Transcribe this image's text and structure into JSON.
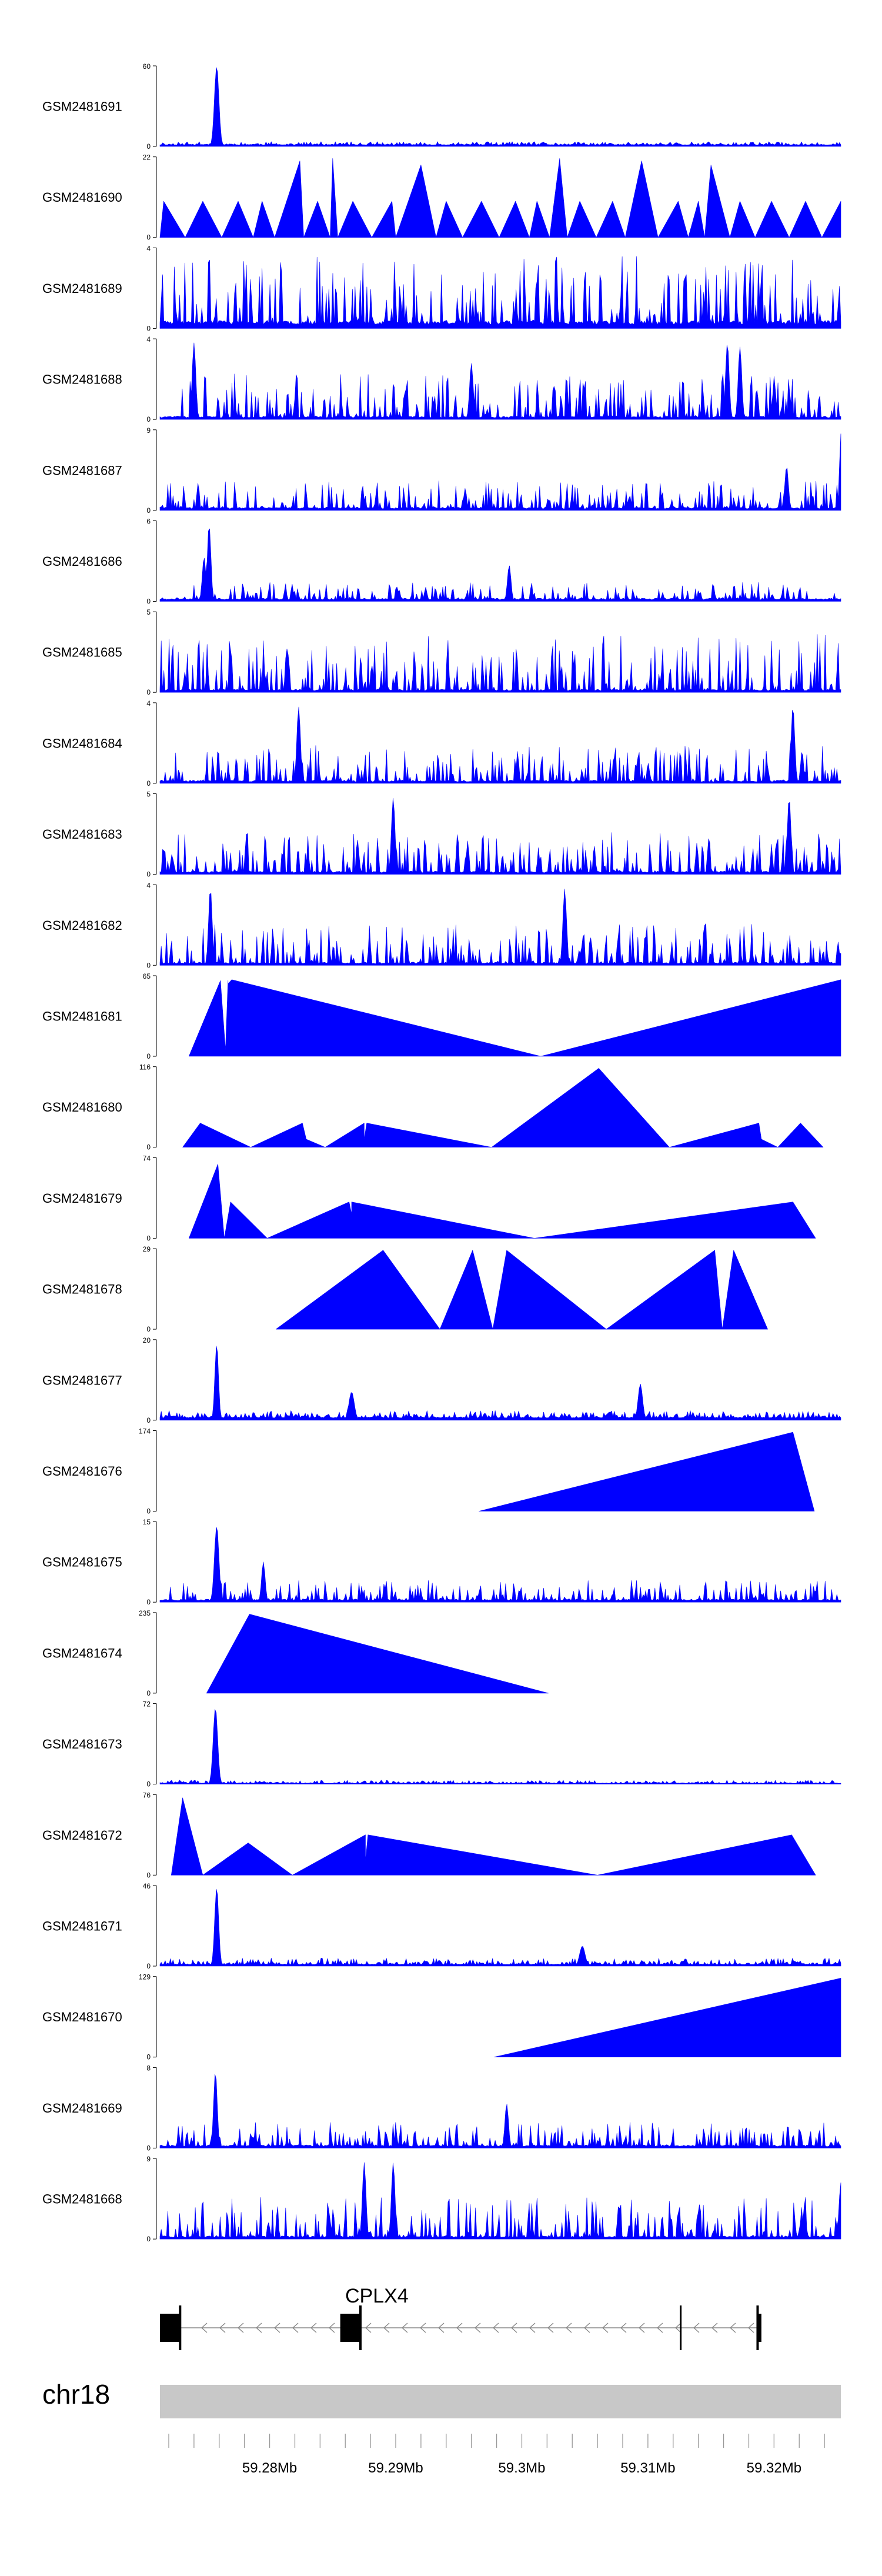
{
  "colors": {
    "signal": "#0000ff",
    "ideogram": "#c8c8c8",
    "gene": "#000000",
    "intron": "#888888"
  },
  "chart_data": {
    "type": "area",
    "title": "",
    "xlabel": "",
    "ylabel": "",
    "region": {
      "chromosome": "chr18",
      "start_mb": 59.2713,
      "end_mb": 59.3253
    },
    "x_ticks": [
      "59.28Mb",
      "59.29Mb",
      "59.3Mb",
      "59.31Mb",
      "59.32Mb"
    ],
    "x_tick_values": [
      59.28,
      59.29,
      59.3,
      59.31,
      59.32
    ],
    "gene": {
      "name": "CPLX4",
      "strand": "-",
      "exons": [
        [
          59.2713,
          59.2729
        ],
        [
          59.2856,
          59.2872
        ],
        [
          59.3187,
          59.319
        ]
      ],
      "extra_mark": 59.3126
    },
    "tracks": [
      {
        "name": "GSM2481691",
        "ymax": "60",
        "style": "noisy",
        "baseline": 0.02,
        "noise": 0.04,
        "peaks": [
          [
            59.2758,
            1.0,
            0.00025
          ]
        ],
        "seed": 11
      },
      {
        "name": "GSM2481690",
        "ymax": "22",
        "style": "tri",
        "points": [
          [
            59.2713,
            0
          ],
          [
            59.2716,
            0.45
          ],
          [
            59.2733,
            0.0
          ],
          [
            59.2747,
            0.45
          ],
          [
            59.2762,
            0.0
          ],
          [
            59.2775,
            0.45
          ],
          [
            59.2787,
            0.0
          ],
          [
            59.2794,
            0.45
          ],
          [
            59.2804,
            0.0
          ],
          [
            59.2824,
            0.95
          ],
          [
            59.2827,
            0.0
          ],
          [
            59.2838,
            0.45
          ],
          [
            59.2848,
            0.0
          ],
          [
            59.285,
            0.98
          ],
          [
            59.2854,
            0.0
          ],
          [
            59.2866,
            0.45
          ],
          [
            59.2881,
            0.0
          ],
          [
            59.2897,
            0.45
          ],
          [
            59.29,
            0.0
          ],
          [
            59.292,
            0.9
          ],
          [
            59.2932,
            0.0
          ],
          [
            59.294,
            0.45
          ],
          [
            59.2953,
            0.0
          ],
          [
            59.2968,
            0.45
          ],
          [
            59.2982,
            0.0
          ],
          [
            59.2995,
            0.45
          ],
          [
            59.3006,
            0.0
          ],
          [
            59.3012,
            0.45
          ],
          [
            59.3022,
            0.0
          ],
          [
            59.303,
            0.98
          ],
          [
            59.3036,
            0.0
          ],
          [
            59.3046,
            0.45
          ],
          [
            59.3059,
            0.0
          ],
          [
            59.3072,
            0.45
          ],
          [
            59.3082,
            0.0
          ],
          [
            59.3095,
            0.95
          ],
          [
            59.3108,
            0.0
          ],
          [
            59.3124,
            0.45
          ],
          [
            59.3132,
            0.0
          ],
          [
            59.314,
            0.45
          ],
          [
            59.3145,
            0.0
          ],
          [
            59.315,
            0.9
          ],
          [
            59.3165,
            0.0
          ],
          [
            59.3173,
            0.45
          ],
          [
            59.3185,
            0.0
          ],
          [
            59.3198,
            0.45
          ],
          [
            59.3212,
            0.0
          ],
          [
            59.3225,
            0.45
          ],
          [
            59.3238,
            0.0
          ],
          [
            59.3253,
            0.45
          ],
          [
            59.3253,
            0
          ]
        ]
      },
      {
        "name": "GSM2481689",
        "ymax": "4",
        "style": "noisy",
        "baseline": 0.05,
        "noise": 0.85,
        "peaks": [],
        "seed": 23,
        "spiky": true
      },
      {
        "name": "GSM2481688",
        "ymax": "4",
        "style": "noisy",
        "baseline": 0.02,
        "noise": 0.55,
        "peaks": [
          [
            59.274,
            0.95,
            0.0002
          ],
          [
            59.296,
            0.7,
            0.0002
          ],
          [
            59.3163,
            0.95,
            0.0002
          ],
          [
            59.3173,
            0.9,
            0.0002
          ]
        ],
        "seed": 37,
        "spiky": true
      },
      {
        "name": "GSM2481687",
        "ymax": "9",
        "style": "noisy",
        "baseline": 0.02,
        "noise": 0.35,
        "peaks": [
          [
            59.3253,
            0.95,
            0.00015
          ],
          [
            59.321,
            0.55,
            0.0002
          ]
        ],
        "seed": 41,
        "spiky": true
      },
      {
        "name": "GSM2481686",
        "ymax": "6",
        "style": "noisy",
        "baseline": 0.02,
        "noise": 0.22,
        "peaks": [
          [
            59.2752,
            0.95,
            0.0002
          ],
          [
            59.2748,
            0.55,
            0.0002
          ],
          [
            59.299,
            0.45,
            0.0002
          ]
        ],
        "seed": 53,
        "spiky": true
      },
      {
        "name": "GSM2481685",
        "ymax": "5",
        "style": "noisy",
        "baseline": 0.02,
        "noise": 0.7,
        "peaks": [],
        "seed": 61,
        "spiky": true
      },
      {
        "name": "GSM2481684",
        "ymax": "4",
        "style": "noisy",
        "baseline": 0.02,
        "noise": 0.45,
        "peaks": [
          [
            59.2823,
            0.95,
            0.0002
          ],
          [
            59.3215,
            0.95,
            0.0002
          ]
        ],
        "seed": 67,
        "spiky": true
      },
      {
        "name": "GSM2481683",
        "ymax": "5",
        "style": "noisy",
        "baseline": 0.02,
        "noise": 0.5,
        "peaks": [
          [
            59.2898,
            0.95,
            0.0002
          ],
          [
            59.3212,
            0.95,
            0.0002
          ]
        ],
        "seed": 71,
        "spiky": true
      },
      {
        "name": "GSM2481682",
        "ymax": "4",
        "style": "noisy",
        "baseline": 0.02,
        "noise": 0.5,
        "peaks": [
          [
            59.2753,
            0.95,
            0.0002
          ],
          [
            59.3034,
            0.95,
            0.0002
          ]
        ],
        "seed": 79,
        "spiky": true
      },
      {
        "name": "GSM2481681",
        "ymax": "65",
        "style": "tri",
        "points": [
          [
            59.2736,
            0
          ],
          [
            59.2761,
            0.94
          ],
          [
            59.2765,
            0.08
          ],
          [
            59.2767,
            0.94
          ],
          [
            59.2767,
            0.9
          ],
          [
            59.277,
            0.95
          ],
          [
            59.3015,
            0.0
          ],
          [
            59.3253,
            0.95
          ],
          [
            59.3253,
            0
          ]
        ]
      },
      {
        "name": "GSM2481680",
        "ymax": "116",
        "style": "tri",
        "points": [
          [
            59.2731,
            0
          ],
          [
            59.2745,
            0.3
          ],
          [
            59.2785,
            0.0
          ],
          [
            59.2826,
            0.3
          ],
          [
            59.2829,
            0.1
          ],
          [
            59.2844,
            0.0
          ],
          [
            59.2875,
            0.3
          ],
          [
            59.2875,
            0.1
          ],
          [
            59.2877,
            0.3
          ],
          [
            59.2976,
            0.0
          ],
          [
            59.3061,
            0.98
          ],
          [
            59.3117,
            0.0
          ],
          [
            59.3188,
            0.3
          ],
          [
            59.319,
            0.1
          ],
          [
            59.3203,
            0.0
          ],
          [
            59.3221,
            0.3
          ],
          [
            59.3239,
            0.0
          ]
        ]
      },
      {
        "name": "GSM2481679",
        "ymax": "74",
        "style": "tri",
        "points": [
          [
            59.2736,
            0
          ],
          [
            59.2759,
            0.92
          ],
          [
            59.2764,
            0.0
          ],
          [
            59.2769,
            0.45
          ],
          [
            59.2798,
            0.0
          ],
          [
            59.2863,
            0.45
          ],
          [
            59.2865,
            0.3
          ],
          [
            59.2865,
            0.45
          ],
          [
            59.301,
            0.0
          ],
          [
            59.3215,
            0.45
          ],
          [
            59.3233,
            0.0
          ]
        ]
      },
      {
        "name": "GSM2481678",
        "ymax": "29",
        "style": "tri",
        "points": [
          [
            59.2805,
            0
          ],
          [
            59.289,
            0.98
          ],
          [
            59.2935,
            0.0
          ],
          [
            59.2961,
            0.98
          ],
          [
            59.2977,
            0.0
          ],
          [
            59.2988,
            0.98
          ],
          [
            59.3067,
            0.0
          ],
          [
            59.3153,
            0.98
          ],
          [
            59.3159,
            0.0
          ],
          [
            59.3168,
            0.98
          ],
          [
            59.3195,
            0.0
          ]
        ]
      },
      {
        "name": "GSM2481677",
        "ymax": "20",
        "style": "noisy",
        "baseline": 0.03,
        "noise": 0.09,
        "peaks": [
          [
            59.2758,
            0.95,
            0.0002
          ],
          [
            59.2865,
            0.35,
            0.0003
          ],
          [
            59.3094,
            0.45,
            0.00025
          ]
        ],
        "seed": 89
      },
      {
        "name": "GSM2481676",
        "ymax": "174",
        "style": "tri",
        "points": [
          [
            59.2966,
            0
          ],
          [
            59.3215,
            0.98
          ],
          [
            59.3232,
            0.0
          ]
        ]
      },
      {
        "name": "GSM2481675",
        "ymax": "15",
        "style": "noisy",
        "baseline": 0.02,
        "noise": 0.25,
        "peaks": [
          [
            59.2758,
            0.95,
            0.00025
          ],
          [
            59.2795,
            0.5,
            0.0002
          ]
        ],
        "seed": 97,
        "spiky": true
      },
      {
        "name": "GSM2481674",
        "ymax": "235",
        "style": "tri",
        "points": [
          [
            59.275,
            0
          ],
          [
            59.2784,
            0.98
          ],
          [
            59.3021,
            0.0
          ]
        ]
      },
      {
        "name": "GSM2481673",
        "ymax": "72",
        "style": "noisy",
        "baseline": 0.01,
        "noise": 0.04,
        "peaks": [
          [
            59.2757,
            0.95,
            0.00025
          ]
        ],
        "seed": 103
      },
      {
        "name": "GSM2481672",
        "ymax": "76",
        "style": "tri",
        "points": [
          [
            59.2722,
            0
          ],
          [
            59.2731,
            0.96
          ],
          [
            59.2747,
            0.0
          ],
          [
            59.2783,
            0.4
          ],
          [
            59.2818,
            0.0
          ],
          [
            59.2876,
            0.5
          ],
          [
            59.2876,
            0.18
          ],
          [
            59.2878,
            0.5
          ],
          [
            59.306,
            0.0
          ],
          [
            59.3214,
            0.5
          ],
          [
            59.3233,
            0.0
          ]
        ]
      },
      {
        "name": "GSM2481671",
        "ymax": "46",
        "style": "noisy",
        "baseline": 0.02,
        "noise": 0.08,
        "peaks": [
          [
            59.2758,
            0.98,
            0.00022
          ],
          [
            59.3048,
            0.25,
            0.0003
          ]
        ],
        "seed": 109
      },
      {
        "name": "GSM2481670",
        "ymax": "129",
        "style": "tri",
        "points": [
          [
            59.2978,
            0
          ],
          [
            59.3253,
            0.98
          ],
          [
            59.3253,
            0
          ]
        ]
      },
      {
        "name": "GSM2481669",
        "ymax": "8",
        "style": "noisy",
        "baseline": 0.02,
        "noise": 0.3,
        "peaks": [
          [
            59.2757,
            0.95,
            0.0002
          ],
          [
            59.2988,
            0.55,
            0.0002
          ]
        ],
        "seed": 113,
        "spiky": true
      },
      {
        "name": "GSM2481668",
        "ymax": "9",
        "style": "noisy",
        "baseline": 0.02,
        "noise": 0.5,
        "peaks": [
          [
            59.2875,
            0.95,
            0.0002
          ],
          [
            59.2898,
            0.95,
            0.0002
          ],
          [
            59.3253,
            0.7,
            0.0002
          ]
        ],
        "seed": 127,
        "spiky": true
      }
    ]
  }
}
